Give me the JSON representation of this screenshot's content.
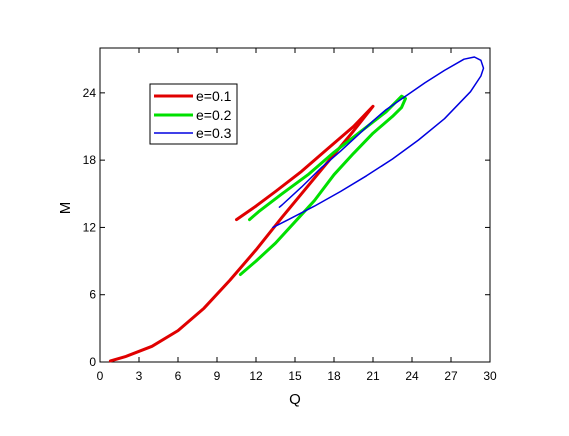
{
  "chart_data": {
    "type": "line",
    "title": "",
    "xlabel": "Q",
    "ylabel": "M",
    "xlim": [
      0,
      30
    ],
    "ylim": [
      0,
      28
    ],
    "x_ticks": [
      {
        "value": 0,
        "label": "0"
      },
      {
        "value": 3,
        "label": "3"
      },
      {
        "value": 6,
        "label": "6"
      },
      {
        "value": 9,
        "label": "9"
      },
      {
        "value": 12,
        "label": "12"
      },
      {
        "value": 15,
        "label": "15"
      },
      {
        "value": 18,
        "label": "18"
      },
      {
        "value": 21,
        "label": "21"
      },
      {
        "value": 24,
        "label": "24"
      },
      {
        "value": 27,
        "label": "27"
      },
      {
        "value": 30,
        "label": "30"
      }
    ],
    "y_ticks": [
      {
        "value": 0,
        "label": "0"
      },
      {
        "value": 6,
        "label": "6"
      },
      {
        "value": 12,
        "label": "12"
      },
      {
        "value": 18,
        "label": "18"
      },
      {
        "value": 24,
        "label": "24"
      }
    ],
    "grid": false,
    "legend_position": "top-left",
    "series": [
      {
        "name": "e=0.1",
        "color": "#e00000",
        "points": [
          [
            0.8,
            0.1
          ],
          [
            2,
            0.5
          ],
          [
            4,
            1.4
          ],
          [
            6,
            2.8
          ],
          [
            8,
            4.8
          ],
          [
            10,
            7.3
          ],
          [
            12,
            10.0
          ],
          [
            14,
            12.9
          ],
          [
            16,
            15.7
          ],
          [
            18,
            18.5
          ],
          [
            19.5,
            20.6
          ],
          [
            21,
            22.8
          ],
          [
            19.5,
            21.0
          ],
          [
            17.5,
            19.0
          ],
          [
            15.5,
            17.0
          ],
          [
            13.5,
            15.2
          ],
          [
            12,
            13.9
          ],
          [
            10.5,
            12.7
          ]
        ]
      },
      {
        "name": "e=0.2",
        "color": "#00e000",
        "points": [
          [
            10.8,
            7.8
          ],
          [
            12,
            9.0
          ],
          [
            13.5,
            10.6
          ],
          [
            15,
            12.5
          ],
          [
            16.5,
            14.4
          ],
          [
            18,
            16.7
          ],
          [
            19.5,
            18.6
          ],
          [
            21,
            20.4
          ],
          [
            22.5,
            21.9
          ],
          [
            23.2,
            22.7
          ],
          [
            23.5,
            23.5
          ],
          [
            23.2,
            23.7
          ],
          [
            22,
            22.3
          ],
          [
            20,
            20.5
          ],
          [
            18,
            18.7
          ],
          [
            16,
            16.7
          ],
          [
            14,
            15.0
          ],
          [
            12.2,
            13.4
          ],
          [
            11.5,
            12.7
          ]
        ]
      },
      {
        "name": "e=0.3",
        "color": "#0000e0",
        "points": [
          [
            13.3,
            12.0
          ],
          [
            14.5,
            12.7
          ],
          [
            16.5,
            13.9
          ],
          [
            18.5,
            15.2
          ],
          [
            20.5,
            16.6
          ],
          [
            22.5,
            18.1
          ],
          [
            24.5,
            19.8
          ],
          [
            26.5,
            21.7
          ],
          [
            28.5,
            24.1
          ],
          [
            29.3,
            25.5
          ],
          [
            29.5,
            26.2
          ],
          [
            29.3,
            26.9
          ],
          [
            28.8,
            27.2
          ],
          [
            28.0,
            27.0
          ],
          [
            26.5,
            26.0
          ],
          [
            25.0,
            24.9
          ],
          [
            23.5,
            23.7
          ],
          [
            22.0,
            22.5
          ],
          [
            21.0,
            21.5
          ],
          [
            20.0,
            20.4
          ],
          [
            18.5,
            18.8
          ],
          [
            17.0,
            17.3
          ],
          [
            15.5,
            15.6
          ],
          [
            14.0,
            14.0
          ],
          [
            13.8,
            13.8
          ]
        ]
      }
    ]
  }
}
